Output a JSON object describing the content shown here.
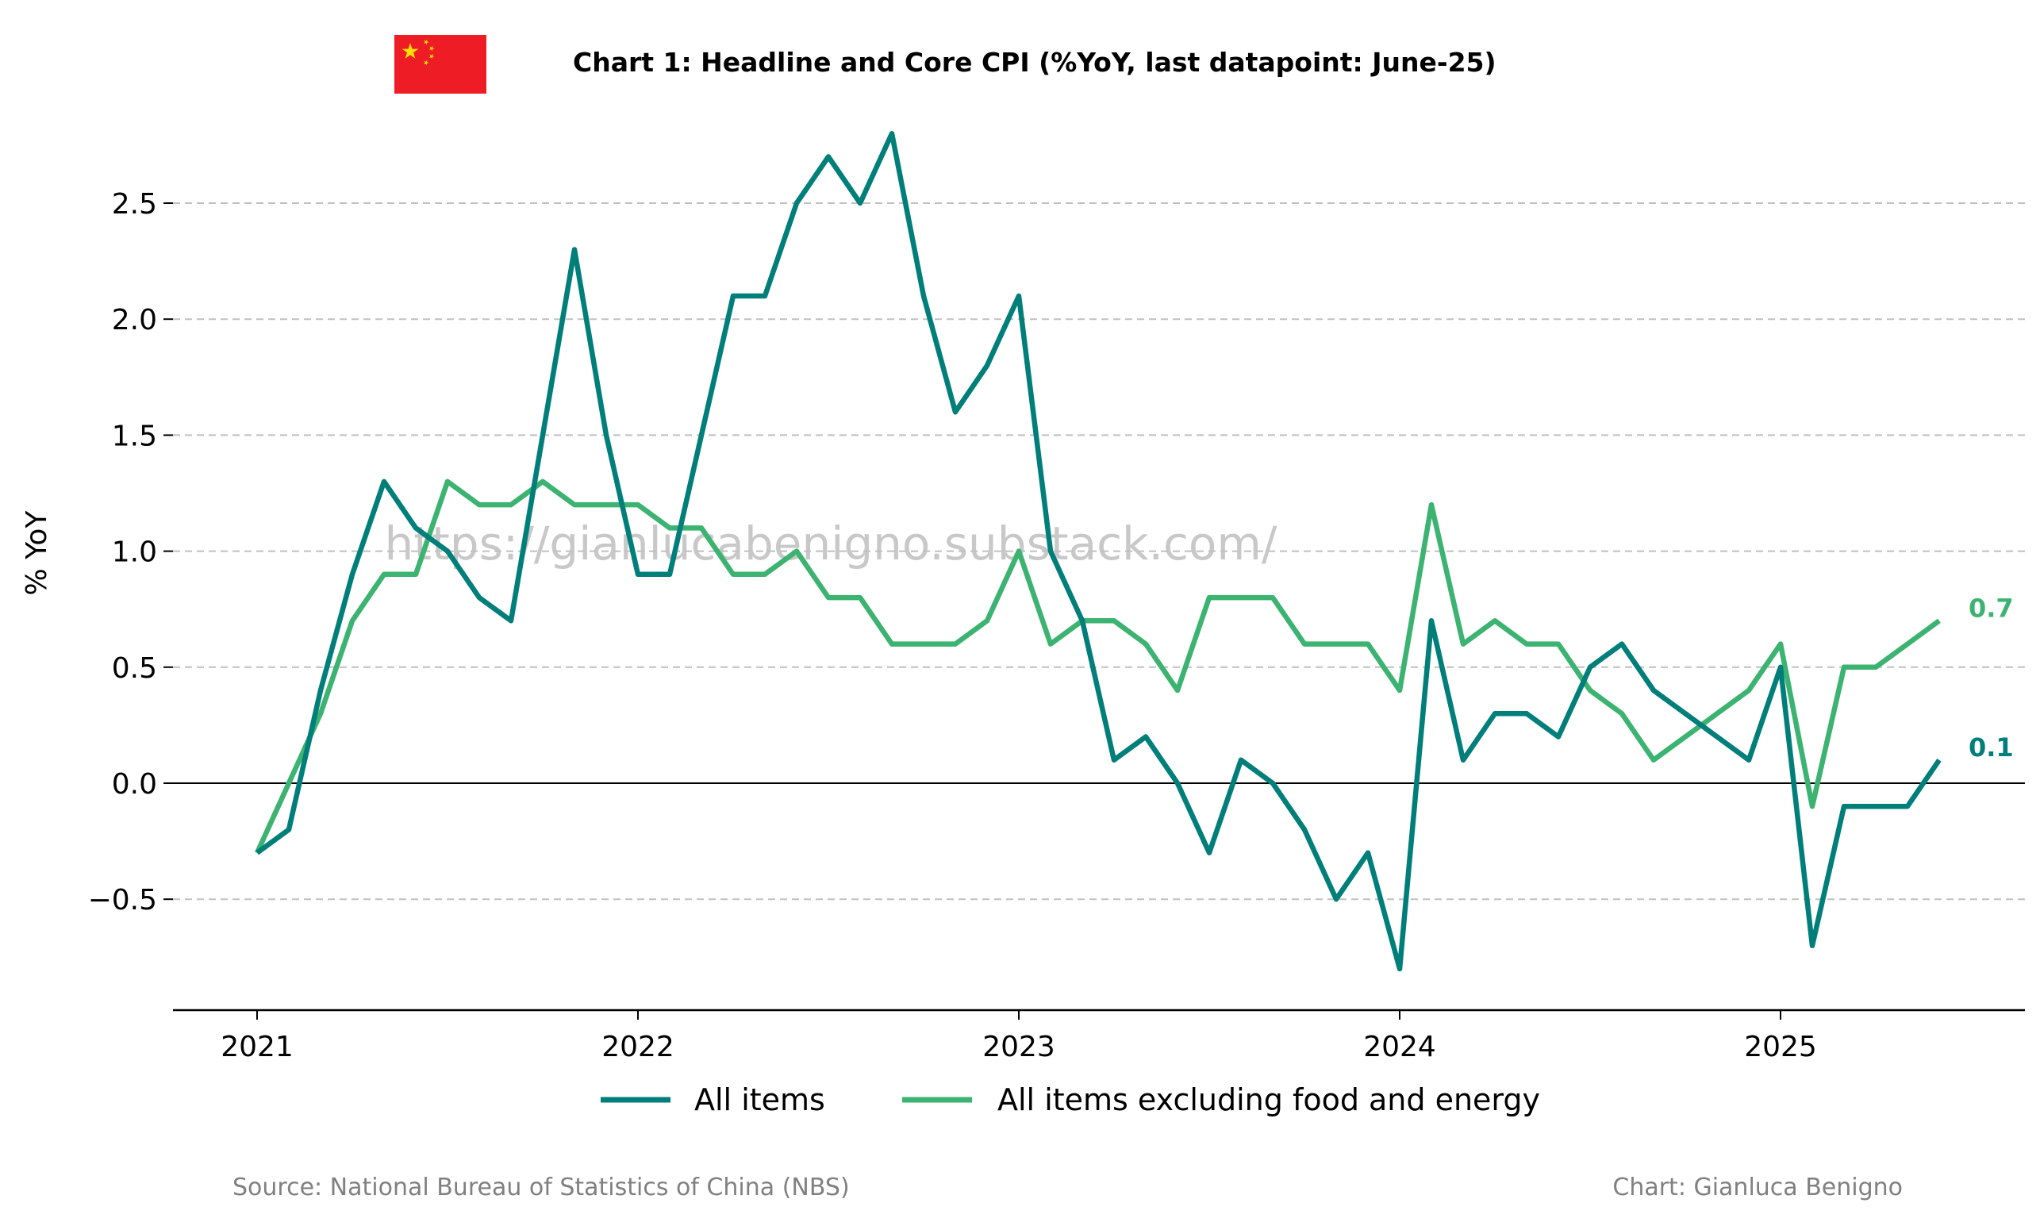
{
  "chart_data": {
    "type": "line",
    "title": "Chart 1: Headline and Core CPI (%YoY, last datapoint: June-25)",
    "ylabel": "% YoY",
    "xlabel": "",
    "ylim": [
      -0.97,
      2.97
    ],
    "xlim": [
      "2020-10",
      "2025-09"
    ],
    "yticks": [
      -0.5,
      0.0,
      0.5,
      1.0,
      1.5,
      2.0,
      2.5
    ],
    "ytick_labels": [
      "−0.5",
      "0.0",
      "0.5",
      "1.0",
      "1.5",
      "2.0",
      "2.5"
    ],
    "xticks": [
      "2021",
      "2022",
      "2023",
      "2024",
      "2025"
    ],
    "grid": "horizontal dashed",
    "legend_position": "bottom-center",
    "months": [
      "2021-01",
      "2021-02",
      "2021-03",
      "2021-04",
      "2021-05",
      "2021-06",
      "2021-07",
      "2021-08",
      "2021-09",
      "2021-10",
      "2021-11",
      "2021-12",
      "2022-01",
      "2022-02",
      "2022-03",
      "2022-04",
      "2022-05",
      "2022-06",
      "2022-07",
      "2022-08",
      "2022-09",
      "2022-10",
      "2022-11",
      "2022-12",
      "2023-01",
      "2023-02",
      "2023-03",
      "2023-04",
      "2023-05",
      "2023-06",
      "2023-07",
      "2023-08",
      "2023-09",
      "2023-10",
      "2023-11",
      "2023-12",
      "2024-01",
      "2024-02",
      "2024-03",
      "2024-04",
      "2024-05",
      "2024-06",
      "2024-07",
      "2024-08",
      "2024-09",
      "2024-10",
      "2024-11",
      "2024-12",
      "2025-01",
      "2025-02",
      "2025-03",
      "2025-04",
      "2025-05",
      "2025-06"
    ],
    "series": [
      {
        "name": "All items",
        "color": "#007f7a",
        "end_label": "0.1",
        "values": [
          -0.3,
          -0.2,
          0.4,
          0.9,
          1.3,
          1.1,
          1.0,
          0.8,
          0.7,
          1.5,
          2.3,
          1.5,
          0.9,
          0.9,
          1.5,
          2.1,
          2.1,
          2.5,
          2.7,
          2.5,
          2.8,
          2.1,
          1.6,
          1.8,
          2.1,
          1.0,
          0.7,
          0.1,
          0.2,
          0.0,
          -0.3,
          0.1,
          0.0,
          -0.2,
          -0.5,
          -0.3,
          -0.8,
          0.7,
          0.1,
          0.3,
          0.3,
          0.2,
          0.5,
          0.6,
          0.4,
          0.3,
          0.2,
          0.1,
          0.5,
          -0.7,
          -0.1,
          -0.1,
          -0.1,
          0.1
        ]
      },
      {
        "name": "All items excluding food and energy",
        "color": "#3cb371",
        "end_label": "0.7",
        "values": [
          -0.3,
          0.0,
          0.3,
          0.7,
          0.9,
          0.9,
          1.3,
          1.2,
          1.2,
          1.3,
          1.2,
          1.2,
          1.2,
          1.1,
          1.1,
          0.9,
          0.9,
          1.0,
          0.8,
          0.8,
          0.6,
          0.6,
          0.6,
          0.7,
          1.0,
          0.6,
          0.7,
          0.7,
          0.6,
          0.4,
          0.8,
          0.8,
          0.8,
          0.6,
          0.6,
          0.6,
          0.4,
          1.2,
          0.6,
          0.7,
          0.6,
          0.6,
          0.4,
          0.3,
          0.1,
          0.2,
          0.3,
          0.4,
          0.6,
          -0.1,
          0.5,
          0.5,
          0.6,
          0.7
        ]
      }
    ]
  },
  "watermark": "https://gianlucabenigno.substack.com/",
  "footer": {
    "source": "Source: National Bureau of Statistics of China (NBS)",
    "credit": "Chart: Gianluca Benigno"
  },
  "flag": {
    "country": "China",
    "field_color": "#ee1c25",
    "star_color": "#ffde00"
  }
}
